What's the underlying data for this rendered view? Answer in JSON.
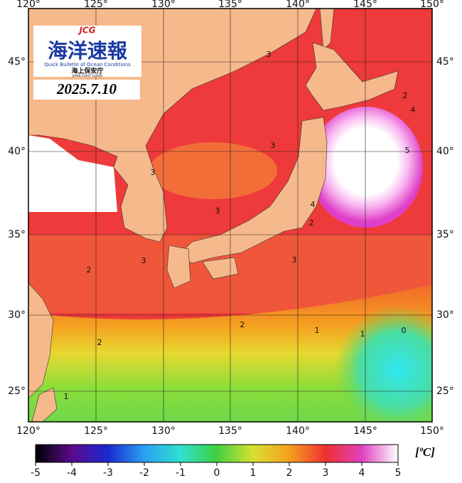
{
  "logo": {
    "mark": "JCG",
    "title": "海洋速報",
    "subtitle": "Quick Bulletin of Ocean Conditions",
    "agency": "海上保安庁",
    "agency_en": "JAPAN COAST GUARD"
  },
  "date": "2025.7.10",
  "map": {
    "lon_labels": [
      "120°",
      "125°",
      "130°",
      "135°",
      "140°",
      "145°",
      "150°"
    ],
    "lat_labels": [
      "45°",
      "40°",
      "35°",
      "30°",
      "25°"
    ],
    "contour_labels": [
      3,
      2,
      4,
      3,
      5,
      3,
      3,
      4,
      2,
      3,
      2,
      3,
      2,
      1,
      1,
      0,
      2,
      1
    ]
  },
  "colorbar": {
    "range": [
      -5,
      5
    ],
    "ticks": [
      -5,
      -4,
      -3,
      -2,
      -1,
      0,
      1,
      2,
      3,
      4,
      5
    ],
    "unit": "[ºC]"
  }
}
